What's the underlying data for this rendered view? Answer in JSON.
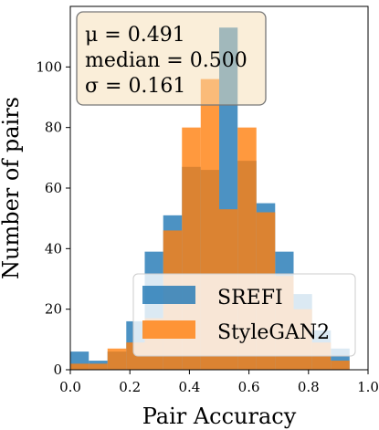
{
  "chart_data": {
    "type": "histogram",
    "xlabel": "Pair Accuracy",
    "ylabel": "Number of pairs",
    "xlim": [
      0.0,
      1.0
    ],
    "ylim": [
      0,
      120
    ],
    "xticks": [
      0.0,
      0.2,
      0.4,
      0.6,
      0.8,
      1.0
    ],
    "xtick_labels": [
      "0.0",
      "0.2",
      "0.4",
      "0.6",
      "0.8",
      "1.0"
    ],
    "yticks": [
      0,
      20,
      40,
      60,
      80,
      100
    ],
    "ytick_labels": [
      "0",
      "20",
      "40",
      "60",
      "80",
      "100"
    ],
    "grid": false,
    "legend_position": "bottom-right",
    "series": [
      {
        "name": "SREFI",
        "color": "#1f77b4",
        "opacity": 0.8,
        "bins": [
          {
            "x0": 0.0,
            "x1": 0.062,
            "value": 6
          },
          {
            "x0": 0.062,
            "x1": 0.125,
            "value": 3
          },
          {
            "x0": 0.125,
            "x1": 0.188,
            "value": 6
          },
          {
            "x0": 0.188,
            "x1": 0.25,
            "value": 16
          },
          {
            "x0": 0.25,
            "x1": 0.312,
            "value": 39
          },
          {
            "x0": 0.312,
            "x1": 0.375,
            "value": 51
          },
          {
            "x0": 0.375,
            "x1": 0.438,
            "value": 67
          },
          {
            "x0": 0.438,
            "x1": 0.5,
            "value": 66
          },
          {
            "x0": 0.5,
            "x1": 0.562,
            "value": 113
          },
          {
            "x0": 0.562,
            "x1": 0.625,
            "value": 69
          },
          {
            "x0": 0.625,
            "x1": 0.688,
            "value": 55
          },
          {
            "x0": 0.688,
            "x1": 0.75,
            "value": 39
          },
          {
            "x0": 0.75,
            "x1": 0.812,
            "value": 25
          },
          {
            "x0": 0.812,
            "x1": 0.875,
            "value": 13
          },
          {
            "x0": 0.875,
            "x1": 0.938,
            "value": 7
          }
        ]
      },
      {
        "name": "StyleGAN2",
        "color": "#ff7f0e",
        "opacity": 0.8,
        "bins": [
          {
            "x0": 0.0,
            "x1": 0.062,
            "value": 2
          },
          {
            "x0": 0.062,
            "x1": 0.125,
            "value": 2
          },
          {
            "x0": 0.125,
            "x1": 0.188,
            "value": 7
          },
          {
            "x0": 0.188,
            "x1": 0.25,
            "value": 9
          },
          {
            "x0": 0.25,
            "x1": 0.312,
            "value": 17
          },
          {
            "x0": 0.312,
            "x1": 0.375,
            "value": 46
          },
          {
            "x0": 0.375,
            "x1": 0.438,
            "value": 80
          },
          {
            "x0": 0.438,
            "x1": 0.5,
            "value": 96
          },
          {
            "x0": 0.5,
            "x1": 0.562,
            "value": 53
          },
          {
            "x0": 0.562,
            "x1": 0.625,
            "value": 80
          },
          {
            "x0": 0.625,
            "x1": 0.688,
            "value": 52
          },
          {
            "x0": 0.688,
            "x1": 0.75,
            "value": 31
          },
          {
            "x0": 0.75,
            "x1": 0.812,
            "value": 20
          },
          {
            "x0": 0.812,
            "x1": 0.875,
            "value": 9
          },
          {
            "x0": 0.875,
            "x1": 0.938,
            "value": 3
          }
        ]
      }
    ],
    "annotation": {
      "lines": [
        "μ = 0.491",
        "median = 0.500",
        "σ = 0.161"
      ],
      "box_color": "#f5deb3"
    },
    "legend": {
      "entries": [
        "SREFI",
        "StyleGAN2"
      ]
    }
  }
}
